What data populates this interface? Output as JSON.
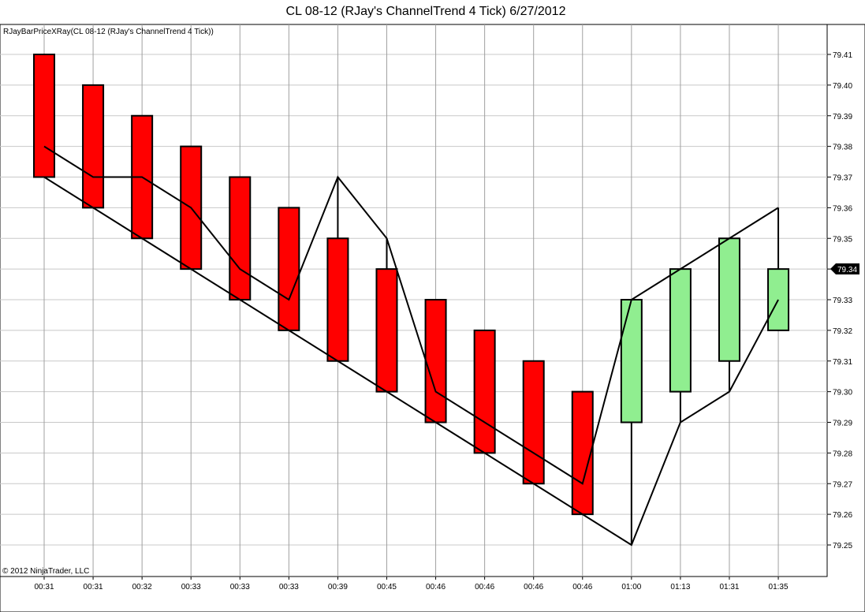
{
  "title": "CL 08-12 (RJay's ChannelTrend  4 Tick)  6/27/2012",
  "indicator_label": "RJayBarPriceXRay(CL 08-12 (RJay's ChannelTrend  4 Tick))",
  "copyright": "© 2012 NinjaTrader, LLC",
  "last_price_label": "79.34",
  "colors": {
    "down_bar": "#ff0000",
    "up_bar": "#90ee90",
    "line": "#000000",
    "grid_h": "#c8c8c8",
    "grid_v": "#a0a0a0"
  },
  "chart_data": {
    "type": "candlestick",
    "ylim": [
      79.245,
      79.42
    ],
    "grid": true,
    "y_ticks": [
      "79.25",
      "79.26",
      "79.27",
      "79.28",
      "79.29",
      "79.30",
      "79.31",
      "79.32",
      "79.33",
      "79.34",
      "79.35",
      "79.36",
      "79.37",
      "79.38",
      "79.39",
      "79.40",
      "79.41"
    ],
    "x_labels": [
      "00:31",
      "00:31",
      "00:32",
      "00:33",
      "00:33",
      "00:33",
      "00:39",
      "00:45",
      "00:46",
      "00:46",
      "00:46",
      "00:46",
      "01:00",
      "01:13",
      "01:31",
      "01:35"
    ],
    "bars": [
      {
        "open": 79.41,
        "close": 79.37,
        "high": 79.41,
        "low": 79.37
      },
      {
        "open": 79.4,
        "close": 79.36,
        "high": 79.4,
        "low": 79.36
      },
      {
        "open": 79.39,
        "close": 79.35,
        "high": 79.39,
        "low": 79.35
      },
      {
        "open": 79.38,
        "close": 79.34,
        "high": 79.38,
        "low": 79.34
      },
      {
        "open": 79.37,
        "close": 79.33,
        "high": 79.37,
        "low": 79.33
      },
      {
        "open": 79.36,
        "close": 79.32,
        "high": 79.36,
        "low": 79.32
      },
      {
        "open": 79.35,
        "close": 79.31,
        "high": 79.37,
        "low": 79.31
      },
      {
        "open": 79.34,
        "close": 79.3,
        "high": 79.35,
        "low": 79.3
      },
      {
        "open": 79.33,
        "close": 79.29,
        "high": 79.33,
        "low": 79.29
      },
      {
        "open": 79.32,
        "close": 79.28,
        "high": 79.32,
        "low": 79.28
      },
      {
        "open": 79.31,
        "close": 79.27,
        "high": 79.31,
        "low": 79.27
      },
      {
        "open": 79.3,
        "close": 79.26,
        "high": 79.3,
        "low": 79.26
      },
      {
        "open": 79.29,
        "close": 79.33,
        "high": 79.33,
        "low": 79.25
      },
      {
        "open": 79.3,
        "close": 79.34,
        "high": 79.34,
        "low": 79.29
      },
      {
        "open": 79.31,
        "close": 79.35,
        "high": 79.35,
        "low": 79.3
      },
      {
        "open": 79.32,
        "close": 79.34,
        "high": 79.36,
        "low": 79.32
      }
    ],
    "series": [
      {
        "values": [
          79.38,
          79.37,
          79.37,
          79.36,
          79.34,
          79.33,
          79.37,
          79.35,
          79.3,
          79.29,
          79.28,
          79.27,
          79.33,
          79.34,
          79.35,
          79.36
        ]
      },
      {
        "values": [
          79.37,
          79.36,
          79.35,
          79.34,
          79.33,
          79.32,
          79.31,
          79.3,
          79.29,
          79.28,
          79.27,
          79.26,
          79.25,
          79.29,
          79.3,
          79.33
        ]
      }
    ]
  }
}
